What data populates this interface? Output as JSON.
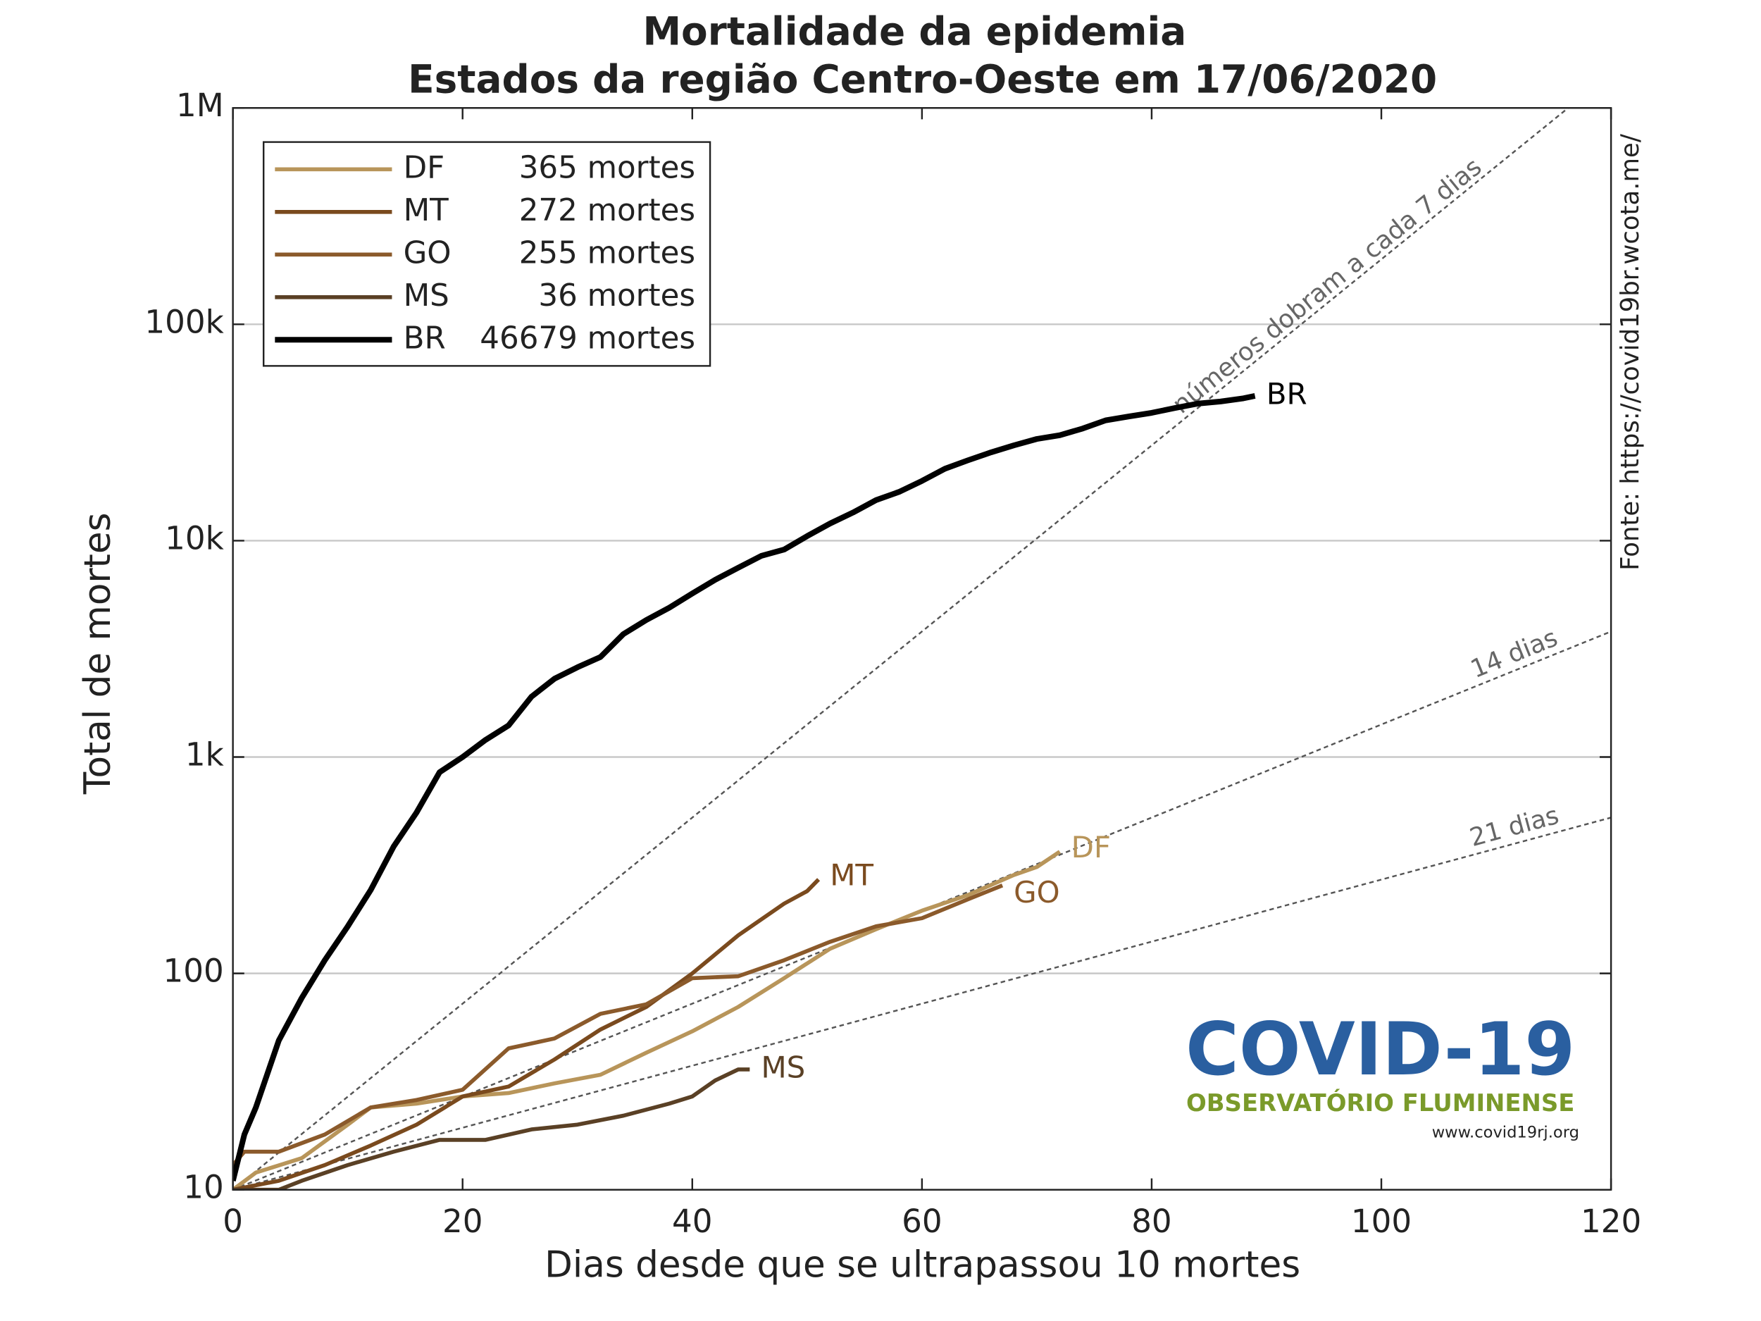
{
  "chart_data": {
    "type": "line",
    "title": "Mortalidade da epidemia",
    "subtitle": "Estados da região Centro-Oeste em 17/06/2020",
    "x_label": "Dias desde que se ultrapassou 10 mortes",
    "y_label": "Total de mortes",
    "source": "Fonte: https://covid19br.wcota.me/",
    "logo": {
      "title": "COVID-19",
      "subtitle": "OBSERVATÓRIO FLUMINENSE",
      "url": "www.covid19rj.org"
    },
    "log_scale": true,
    "grid": true,
    "legend_position": "upper-left",
    "xlim": [
      0,
      120
    ],
    "xticks": [
      0,
      20,
      40,
      60,
      80,
      100,
      120
    ],
    "ylim": [
      10,
      1000000
    ],
    "yticks": [
      10,
      100,
      {
        "value": 1000,
        "label": "1k"
      },
      {
        "value": 10000,
        "label": "10k"
      },
      {
        "value": 100000,
        "label": "100k"
      },
      {
        "value": 1000000,
        "label": "1M"
      }
    ],
    "reference_lines": [
      {
        "label": "números dobram a cada 7 dias",
        "doubling_days": 7
      },
      {
        "label": "14 dias",
        "doubling_days": 14
      },
      {
        "label": "21 dias",
        "doubling_days": 21
      }
    ],
    "series": [
      {
        "name": "DF",
        "legend_label": "365 mortes",
        "color": "#b8955a",
        "x": [
          0,
          2,
          6,
          10,
          12,
          16,
          20,
          24,
          28,
          32,
          36,
          40,
          44,
          48,
          52,
          56,
          60,
          64,
          68,
          70,
          72
        ],
        "values": [
          10,
          12,
          14,
          20,
          24,
          25,
          27,
          28,
          31,
          34,
          43,
          54,
          70,
          95,
          130,
          160,
          195,
          230,
          285,
          310,
          365
        ]
      },
      {
        "name": "MT",
        "legend_label": "272 mortes",
        "color": "#7a4a1e",
        "x": [
          0,
          4,
          8,
          12,
          16,
          20,
          24,
          28,
          32,
          36,
          40,
          44,
          48,
          50,
          51
        ],
        "values": [
          10,
          11,
          13,
          16,
          20,
          27,
          30,
          40,
          55,
          70,
          100,
          150,
          210,
          240,
          272
        ]
      },
      {
        "name": "GO",
        "legend_label": "255 mortes",
        "color": "#8b5a2b",
        "x": [
          0,
          1,
          4,
          8,
          12,
          16,
          20,
          24,
          28,
          32,
          36,
          40,
          44,
          48,
          52,
          56,
          60,
          64,
          67
        ],
        "values": [
          13,
          15,
          15,
          18,
          24,
          26,
          29,
          45,
          50,
          65,
          72,
          95,
          97,
          115,
          140,
          165,
          180,
          220,
          255
        ]
      },
      {
        "name": "MS",
        "legend_label": "36 mortes",
        "color": "#5a4025",
        "x": [
          0,
          4,
          6,
          10,
          14,
          18,
          22,
          26,
          30,
          34,
          38,
          40,
          42,
          44,
          45
        ],
        "values": [
          10,
          10,
          11,
          13,
          15,
          17,
          17,
          19,
          20,
          22,
          25,
          27,
          32,
          36,
          36
        ]
      },
      {
        "name": "BR",
        "legend_label": "46679 mortes",
        "color": "#000000",
        "x": [
          0,
          1,
          2,
          4,
          6,
          8,
          10,
          12,
          14,
          16,
          18,
          20,
          22,
          24,
          26,
          28,
          30,
          32,
          34,
          36,
          38,
          40,
          42,
          44,
          46,
          48,
          50,
          52,
          54,
          56,
          58,
          60,
          62,
          64,
          66,
          68,
          70,
          72,
          74,
          76,
          78,
          80,
          82,
          84,
          86,
          88,
          89
        ],
        "values": [
          11,
          18,
          24,
          49,
          77,
          115,
          165,
          243,
          386,
          555,
          850,
          1000,
          1200,
          1400,
          1900,
          2300,
          2600,
          2900,
          3700,
          4300,
          4900,
          5700,
          6600,
          7500,
          8500,
          9100,
          10500,
          12000,
          13500,
          15400,
          16800,
          18900,
          21500,
          23500,
          25600,
          27600,
          29500,
          30700,
          33000,
          36000,
          37500,
          39000,
          41000,
          43000,
          44000,
          45500,
          46679
        ]
      }
    ]
  }
}
